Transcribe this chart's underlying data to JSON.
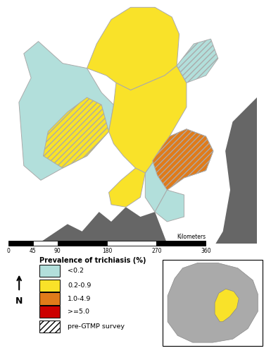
{
  "background_color": "#c8c8c8",
  "surrounding_color": "#c0c0c0",
  "dark_color": "#666666",
  "colors": {
    "lt02": "#b2dfdb",
    "02_09": "#f9e229",
    "10_49": "#e07b1a",
    "gte50": "#cc0000"
  },
  "legend": {
    "title": "Prevalence of trichiasis (%)",
    "items": [
      "<0.2",
      "0.2-0.9",
      "1.0-4.9",
      ">=5.0",
      "pre-GTMP survey"
    ],
    "colors": [
      "#b2dfdb",
      "#f9e229",
      "#e07b1a",
      "#cc0000",
      "#ffffff"
    ]
  },
  "scalebar": {
    "ticks": [
      0,
      45,
      90,
      180,
      270,
      360
    ],
    "label": "Kilometers"
  },
  "inset_bg": "#555555",
  "nigeria_highlight": "#f9e229"
}
